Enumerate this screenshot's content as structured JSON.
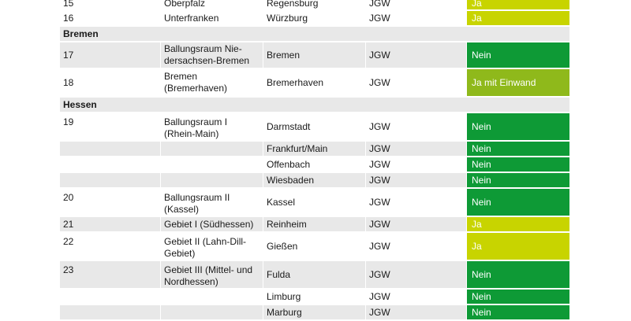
{
  "rows": [
    {
      "kind": "row",
      "h": 18,
      "shade": false,
      "no": "15",
      "region": "Oberpfalz",
      "city": "Regensburg",
      "type": "JGW",
      "status": "Ja",
      "color": "lime"
    },
    {
      "kind": "row",
      "h": 20,
      "shade": false,
      "no": "16",
      "region": "Unterfranken",
      "city": "Würzburg",
      "type": "JGW",
      "status": "Ja",
      "color": "lime"
    },
    {
      "kind": "section",
      "h": 20,
      "label": "Bremen"
    },
    {
      "kind": "row",
      "h": 34,
      "shade": true,
      "no": "17",
      "region": "Ballungsraum Nie-\ndersachsen-Bremen",
      "city": "Bremen",
      "type": "JGW",
      "status": "Nein",
      "color": "green"
    },
    {
      "kind": "row",
      "h": 36,
      "shade": false,
      "no": "18",
      "region": "Bremen\n(Bremerhaven)",
      "city": "Bremerhaven",
      "type": "JGW",
      "status": "Ja mit Einwand",
      "color": "olive"
    },
    {
      "kind": "section",
      "h": 20,
      "label": "Hessen"
    },
    {
      "kind": "row",
      "h": 36,
      "shade": false,
      "top": true,
      "no": "19",
      "region": "Ballungsraum I\n(Rhein-Main)",
      "city": "Darmstadt",
      "type": "JGW",
      "status": "Nein",
      "color": "green"
    },
    {
      "kind": "row",
      "h": 20,
      "shade": true,
      "no": "",
      "region": "",
      "city": "Frankfurt/Main",
      "type": "JGW",
      "status": "Nein",
      "color": "green"
    },
    {
      "kind": "row",
      "h": 20,
      "shade": false,
      "no": "",
      "region": "",
      "city": "Offenbach",
      "type": "JGW",
      "status": "Nein",
      "color": "green"
    },
    {
      "kind": "row",
      "h": 20,
      "shade": true,
      "no": "",
      "region": "",
      "city": "Wiesbaden",
      "type": "JGW",
      "status": "Nein",
      "color": "green"
    },
    {
      "kind": "row",
      "h": 36,
      "shade": false,
      "top": true,
      "no": "20",
      "region": "Ballungsraum II\n(Kassel)",
      "city": "Kassel",
      "type": "JGW",
      "status": "Nein",
      "color": "green"
    },
    {
      "kind": "row",
      "h": 20,
      "shade": true,
      "no": "21",
      "region": "Gebiet I (Südhessen)",
      "city": "Reinheim",
      "type": "JGW",
      "status": "Ja",
      "color": "lime"
    },
    {
      "kind": "row",
      "h": 36,
      "shade": false,
      "top": true,
      "no": "22",
      "region": "Gebiet II (Lahn-Dill-\nGebiet)",
      "city": "Gießen",
      "type": "JGW",
      "status": "Ja",
      "color": "lime"
    },
    {
      "kind": "row",
      "h": 36,
      "shade": true,
      "top": true,
      "no": "23",
      "region": "Gebiet III (Mittel- und\nNordhessen)",
      "city": "Fulda",
      "type": "JGW",
      "status": "Nein",
      "color": "green"
    },
    {
      "kind": "row",
      "h": 20,
      "shade": false,
      "no": "",
      "region": "",
      "city": "Limburg",
      "type": "JGW",
      "status": "Nein",
      "color": "green"
    },
    {
      "kind": "row",
      "h": 20,
      "shade": true,
      "no": "",
      "region": "",
      "city": "Marburg",
      "type": "JGW",
      "status": "Nein",
      "color": "green"
    }
  ]
}
